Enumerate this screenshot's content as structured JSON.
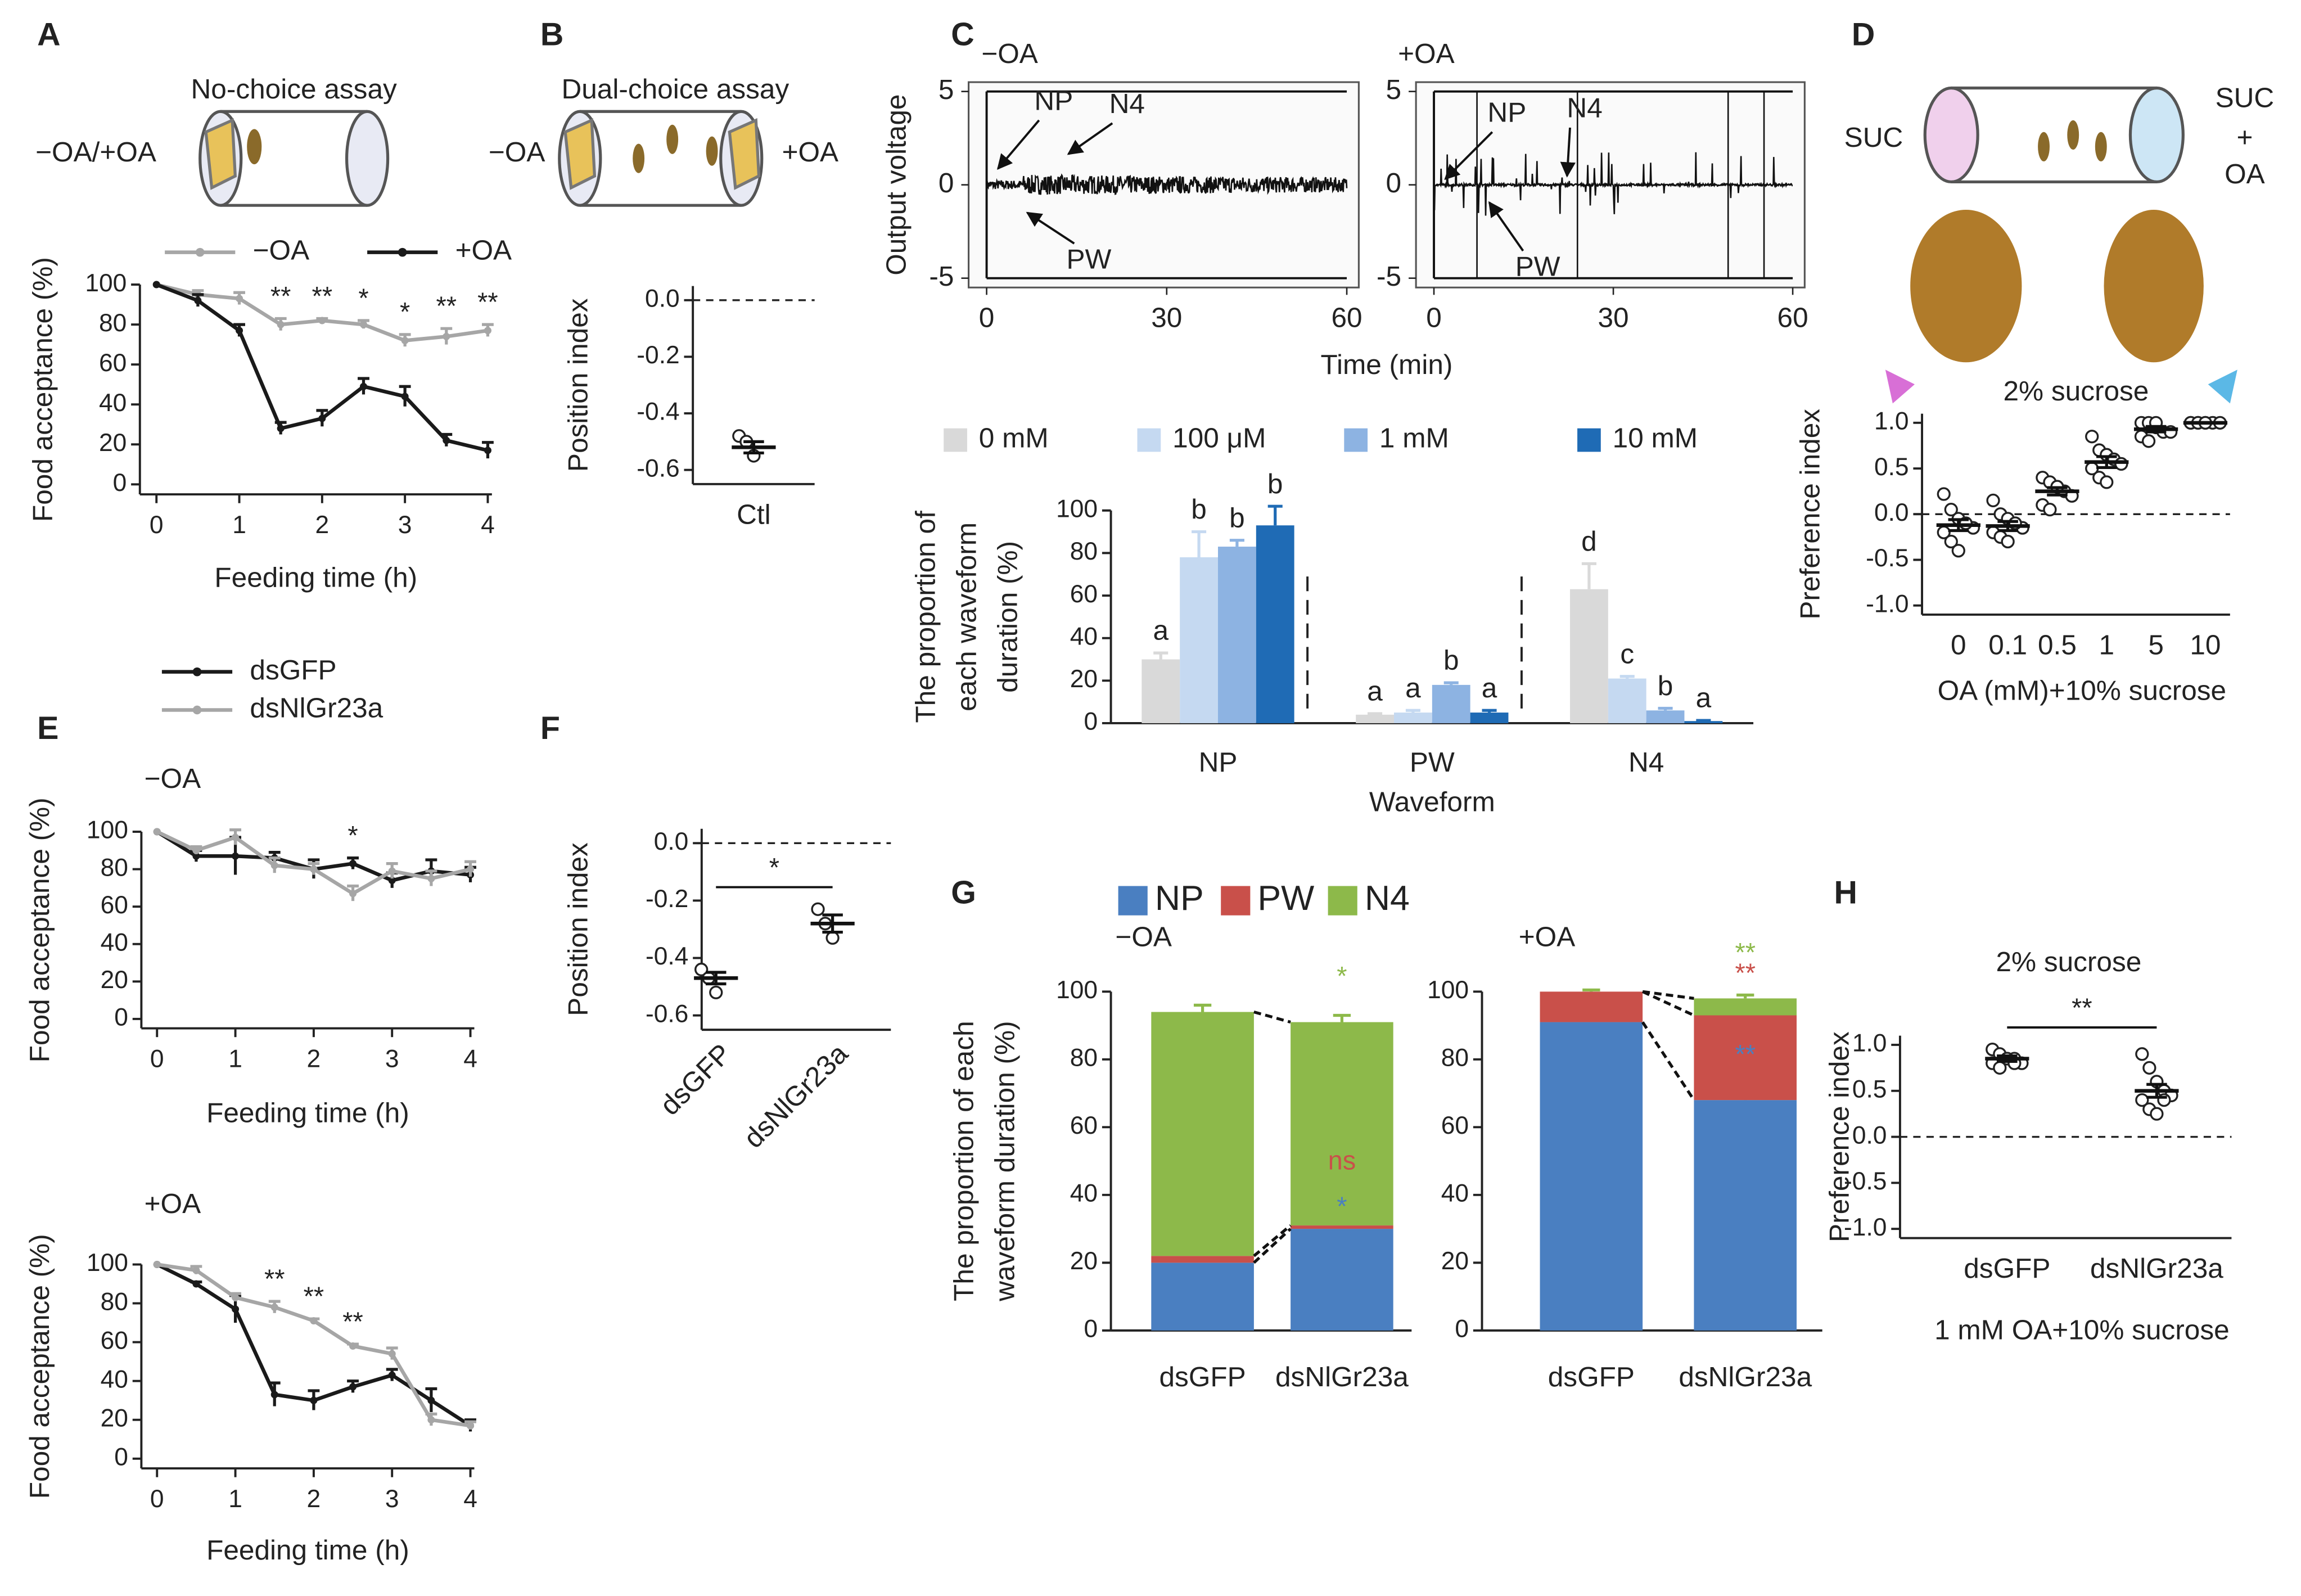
{
  "chart_data": [
    {
      "type": "line",
      "panel": "A",
      "title": "No-choice assay",
      "icon_label": "−OA/+OA",
      "xlabel": "Feeding time (h)",
      "ylabel": "Food acceptance (%)",
      "x": [
        0,
        0.5,
        1,
        1.5,
        2,
        2.5,
        3,
        3.5,
        4
      ],
      "xlim": [
        -0.2,
        4.05
      ],
      "xticks": [
        0,
        1,
        2,
        3,
        4
      ],
      "ylim": [
        -5,
        100
      ],
      "yticks": [
        0,
        20,
        40,
        60,
        80,
        100
      ],
      "legend": "top",
      "series": [
        {
          "name": "−OA",
          "color": "#a6a6a6",
          "values": [
            100,
            95,
            93,
            80,
            82,
            80,
            72,
            74,
            77
          ],
          "errors": [
            0,
            2,
            3,
            3,
            1,
            2,
            3,
            4,
            3
          ]
        },
        {
          "name": "+OA",
          "color": "#1a1a1a",
          "values": [
            100,
            92,
            77,
            28,
            33,
            49,
            44,
            22,
            17
          ],
          "errors": [
            0,
            3,
            3,
            3,
            4,
            4,
            5,
            3,
            4
          ]
        }
      ],
      "annotations": [
        {
          "x": 1.5,
          "text": "**"
        },
        {
          "x": 2,
          "text": "**"
        },
        {
          "x": 2.5,
          "text": "*"
        },
        {
          "x": 3,
          "text": "*"
        },
        {
          "x": 3.5,
          "text": "**"
        },
        {
          "x": 4,
          "text": "**"
        }
      ]
    },
    {
      "type": "scatter",
      "panel": "B",
      "title": "Dual-choice assay",
      "side_labels": [
        "−OA",
        "+OA"
      ],
      "ylabel": "Position index",
      "categories": [
        "Ctl"
      ],
      "points": [
        [
          -0.48,
          -0.5,
          -0.55
        ]
      ],
      "values": [
        -0.52
      ],
      "errors": [
        0.02
      ],
      "ylim": [
        -0.65,
        0.05
      ],
      "yticks": [
        {
          "value": 0,
          "label": "0.0"
        },
        {
          "value": -0.2,
          "label": "-0.2"
        },
        {
          "value": -0.4,
          "label": "-0.4"
        },
        {
          "value": -0.6,
          "label": "-0.6"
        }
      ],
      "hline": 0
    },
    {
      "type": "trace",
      "panel": "C",
      "ylabel": "Output voltage",
      "xlabel": "Time (min)",
      "xlim": [
        -3,
        62
      ],
      "xticks": [
        0,
        30,
        60
      ],
      "ylim": [
        -5.5,
        5.5
      ],
      "yticks": [
        -5,
        0,
        5
      ],
      "panels": [
        {
          "title": "−OA",
          "annotations": [
            "NP",
            "N4",
            "PW"
          ]
        },
        {
          "title": "+OA",
          "annotations": [
            "NP",
            "N4",
            "PW"
          ]
        }
      ]
    },
    {
      "type": "bar",
      "xlabel": "Waveform",
      "ylabel": [
        "The proportion of",
        "each waveform",
        "duration (%)"
      ],
      "categories": [
        "NP",
        "PW",
        "N4"
      ],
      "ylim": [
        0,
        100
      ],
      "yticks": [
        0,
        20,
        40,
        60,
        80,
        100
      ],
      "series": [
        {
          "name": "0 mM",
          "color": "#d9d9d9",
          "values": [
            30,
            4,
            63
          ],
          "errors": [
            3,
            0.5,
            12
          ],
          "annotations": [
            "a",
            "a",
            "d"
          ]
        },
        {
          "name": "100  μM",
          "color": "#c5d9f1",
          "values": [
            78,
            5,
            21
          ],
          "errors": [
            12,
            1,
            1
          ],
          "annotations": [
            "b",
            "a",
            "c"
          ]
        },
        {
          "name": "1 mM",
          "color": "#8db3e2",
          "values": [
            83,
            18,
            6
          ],
          "errors": [
            3,
            1,
            1
          ],
          "annotations": [
            "b",
            "b",
            "b"
          ]
        },
        {
          "name": "10 mM",
          "color": "#1f6bb5",
          "values": [
            93,
            5,
            1
          ],
          "errors": [
            9,
            1,
            0.3
          ],
          "annotations": [
            "b",
            "a",
            "a"
          ]
        }
      ]
    },
    {
      "type": "scatter",
      "panel": "D",
      "title": "2% sucrose",
      "xlabel": "OA (mM)+10% sucrose",
      "ylabel": "Preference index",
      "side_labels": [
        "SUC",
        "SUC",
        "+",
        "OA"
      ],
      "categories": [
        "0",
        "0.1",
        "0.5",
        "1",
        "5",
        "10"
      ],
      "points": [
        [
          0.22,
          0.05,
          -0.05,
          -0.1,
          -0.15,
          -0.2,
          -0.3,
          -0.4,
          -0.1
        ],
        [
          0.15,
          0,
          -0.05,
          -0.1,
          -0.15,
          -0.2,
          -0.25,
          -0.3,
          -0.1
        ],
        [
          0.4,
          0.35,
          0.3,
          0.25,
          0.2,
          0.1,
          0.05,
          0.3
        ],
        [
          0.85,
          0.7,
          0.65,
          0.6,
          0.55,
          0.5,
          0.4,
          0.35
        ],
        [
          1,
          1,
          0.95,
          0.9,
          0.9,
          0.85,
          0.8,
          1
        ],
        [
          1,
          1,
          1,
          1,
          1,
          1,
          1,
          1
        ]
      ],
      "values": [
        -0.12,
        -0.13,
        0.25,
        0.57,
        0.93,
        1
      ],
      "errors": [
        0.06,
        0.05,
        0.04,
        0.06,
        0.03,
        0
      ],
      "ylim": [
        -1.1,
        1.1
      ],
      "yticks": [
        {
          "value": 1,
          "label": "1.0"
        },
        {
          "value": 0.5,
          "label": "0.5"
        },
        {
          "value": 0,
          "label": "0.0"
        },
        {
          "value": -0.5,
          "label": "-0.5"
        },
        {
          "value": -1,
          "label": "-1.0"
        }
      ],
      "hline": 0
    },
    {
      "type": "line",
      "panel": "E",
      "title": "−OA",
      "xlabel": "Feeding time (h)",
      "ylabel": "Food acceptance (%)",
      "x": [
        0,
        0.5,
        1,
        1.5,
        2,
        2.5,
        3,
        3.5,
        4
      ],
      "xlim": [
        -0.2,
        4.05
      ],
      "xticks": [
        0,
        1,
        2,
        3,
        4
      ],
      "ylim": [
        -5,
        100
      ],
      "yticks": [
        0,
        20,
        40,
        60,
        80,
        100
      ],
      "legend": "top left",
      "series": [
        {
          "name": "dsGFP",
          "color": "#1a1a1a",
          "values": [
            100,
            87,
            87,
            86,
            80,
            83,
            74,
            79,
            77
          ],
          "errors": [
            0,
            3,
            10,
            3,
            5,
            3,
            4,
            6,
            4
          ]
        },
        {
          "name": "dsNlGr23a",
          "color": "#a6a6a6",
          "values": [
            100,
            90,
            97,
            82,
            80,
            67,
            79,
            75,
            80
          ],
          "errors": [
            0,
            2,
            4,
            4,
            3,
            4,
            4,
            4,
            4
          ]
        }
      ],
      "annotations": [
        {
          "x": 2.5,
          "text": "*"
        }
      ]
    },
    {
      "type": "line",
      "title": "+OA",
      "xlabel": "Feeding time (h)",
      "ylabel": "Food acceptance (%)",
      "x": [
        0,
        0.5,
        1,
        1.5,
        2,
        2.5,
        3,
        3.5,
        4
      ],
      "xlim": [
        -0.2,
        4.05
      ],
      "xticks": [
        0,
        1,
        2,
        3,
        4
      ],
      "ylim": [
        -5,
        100
      ],
      "yticks": [
        0,
        20,
        40,
        60,
        80,
        100
      ],
      "series": [
        {
          "color": "#1a1a1a",
          "values": [
            100,
            90,
            77,
            33,
            30,
            37,
            43,
            30,
            17
          ],
          "errors": [
            0,
            1,
            7,
            6,
            5,
            3,
            3,
            6,
            3
          ]
        },
        {
          "color": "#a6a6a6",
          "values": [
            100,
            97,
            83,
            78,
            71,
            58,
            54,
            20,
            17
          ],
          "errors": [
            0,
            2,
            2,
            3,
            1,
            1,
            3,
            3,
            2
          ]
        }
      ],
      "annotations": [
        {
          "x": 1.5,
          "text": "**"
        },
        {
          "x": 2,
          "text": "**"
        },
        {
          "x": 2.5,
          "text": "**"
        }
      ]
    },
    {
      "type": "scatter",
      "panel": "F",
      "ylabel": "Position index",
      "categories": [
        "dsGFP",
        "dsNlGr23a"
      ],
      "points": [
        [
          -0.44,
          -0.47,
          -0.52
        ],
        [
          -0.23,
          -0.28,
          -0.33
        ]
      ],
      "values": [
        -0.47,
        -0.28
      ],
      "errors": [
        0.02,
        0.03
      ],
      "ylim": [
        -0.65,
        0.05
      ],
      "yticks": [
        {
          "value": 0,
          "label": "0.0"
        },
        {
          "value": -0.2,
          "label": "-0.2"
        },
        {
          "value": -0.4,
          "label": "-0.4"
        },
        {
          "value": -0.6,
          "label": "-0.6"
        }
      ],
      "hline": 0,
      "comparison": "*"
    },
    {
      "type": "stacked",
      "panel": "G",
      "title": "−OA",
      "ylabel": [
        "The proportion of each",
        "waveform duration (%)"
      ],
      "categories": [
        "dsGFP",
        "dsNlGr23a"
      ],
      "ylim": [
        0,
        100
      ],
      "yticks": [
        0,
        20,
        40,
        60,
        80,
        100
      ],
      "series": [
        {
          "name": "NP",
          "color": "#4a7fc1",
          "values": [
            20,
            30
          ],
          "annotations": [
            null,
            "*"
          ]
        },
        {
          "name": "PW",
          "color": "#c9504a",
          "values": [
            2,
            1
          ],
          "annotations": [
            null,
            "ns"
          ]
        },
        {
          "name": "N4",
          "color": "#8db94a",
          "values": [
            72,
            60
          ],
          "errors": [
            2,
            2
          ],
          "annotations": [
            null,
            "*"
          ]
        }
      ]
    },
    {
      "type": "stacked",
      "title": "+OA",
      "categories": [
        "dsGFP",
        "dsNlGr23a"
      ],
      "ylim": [
        0,
        100
      ],
      "yticks": [
        0,
        20,
        40,
        60,
        80,
        100
      ],
      "series": [
        {
          "color": "#4a7fc1",
          "values": [
            91,
            68
          ],
          "errors": [
            8,
            3
          ],
          "annotations": [
            null,
            "**"
          ]
        },
        {
          "color": "#c9504a",
          "values": [
            9,
            25
          ],
          "annotations": [
            null,
            "**"
          ]
        },
        {
          "color": "#8db94a",
          "values": [
            0,
            5
          ],
          "errors": [
            0.5,
            1
          ],
          "annotations": [
            null,
            "**"
          ]
        }
      ]
    },
    {
      "type": "scatter",
      "panel": "H",
      "title": "2% sucrose",
      "xlabel": "1 mM OA+10% sucrose",
      "ylabel": "Preference index",
      "categories": [
        "dsGFP",
        "dsNlGr23a"
      ],
      "points": [
        [
          0.95,
          0.9,
          0.85,
          0.85,
          0.8,
          0.8,
          0.75,
          0.85,
          0.8
        ],
        [
          0.9,
          0.75,
          0.6,
          0.5,
          0.45,
          0.4,
          0.3,
          0.25,
          0.4
        ]
      ],
      "values": [
        0.85,
        0.5
      ],
      "errors": [
        0.03,
        0.07
      ],
      "ylim": [
        -1.1,
        1.1
      ],
      "yticks": [
        {
          "value": 1,
          "label": "1.0"
        },
        {
          "value": 0.5,
          "label": "0.5"
        },
        {
          "value": 0,
          "label": "0.0"
        },
        {
          "value": -0.5,
          "label": "-0.5"
        },
        {
          "value": -1,
          "label": "-1.0"
        }
      ],
      "hline": 0,
      "comparison": "**"
    }
  ]
}
